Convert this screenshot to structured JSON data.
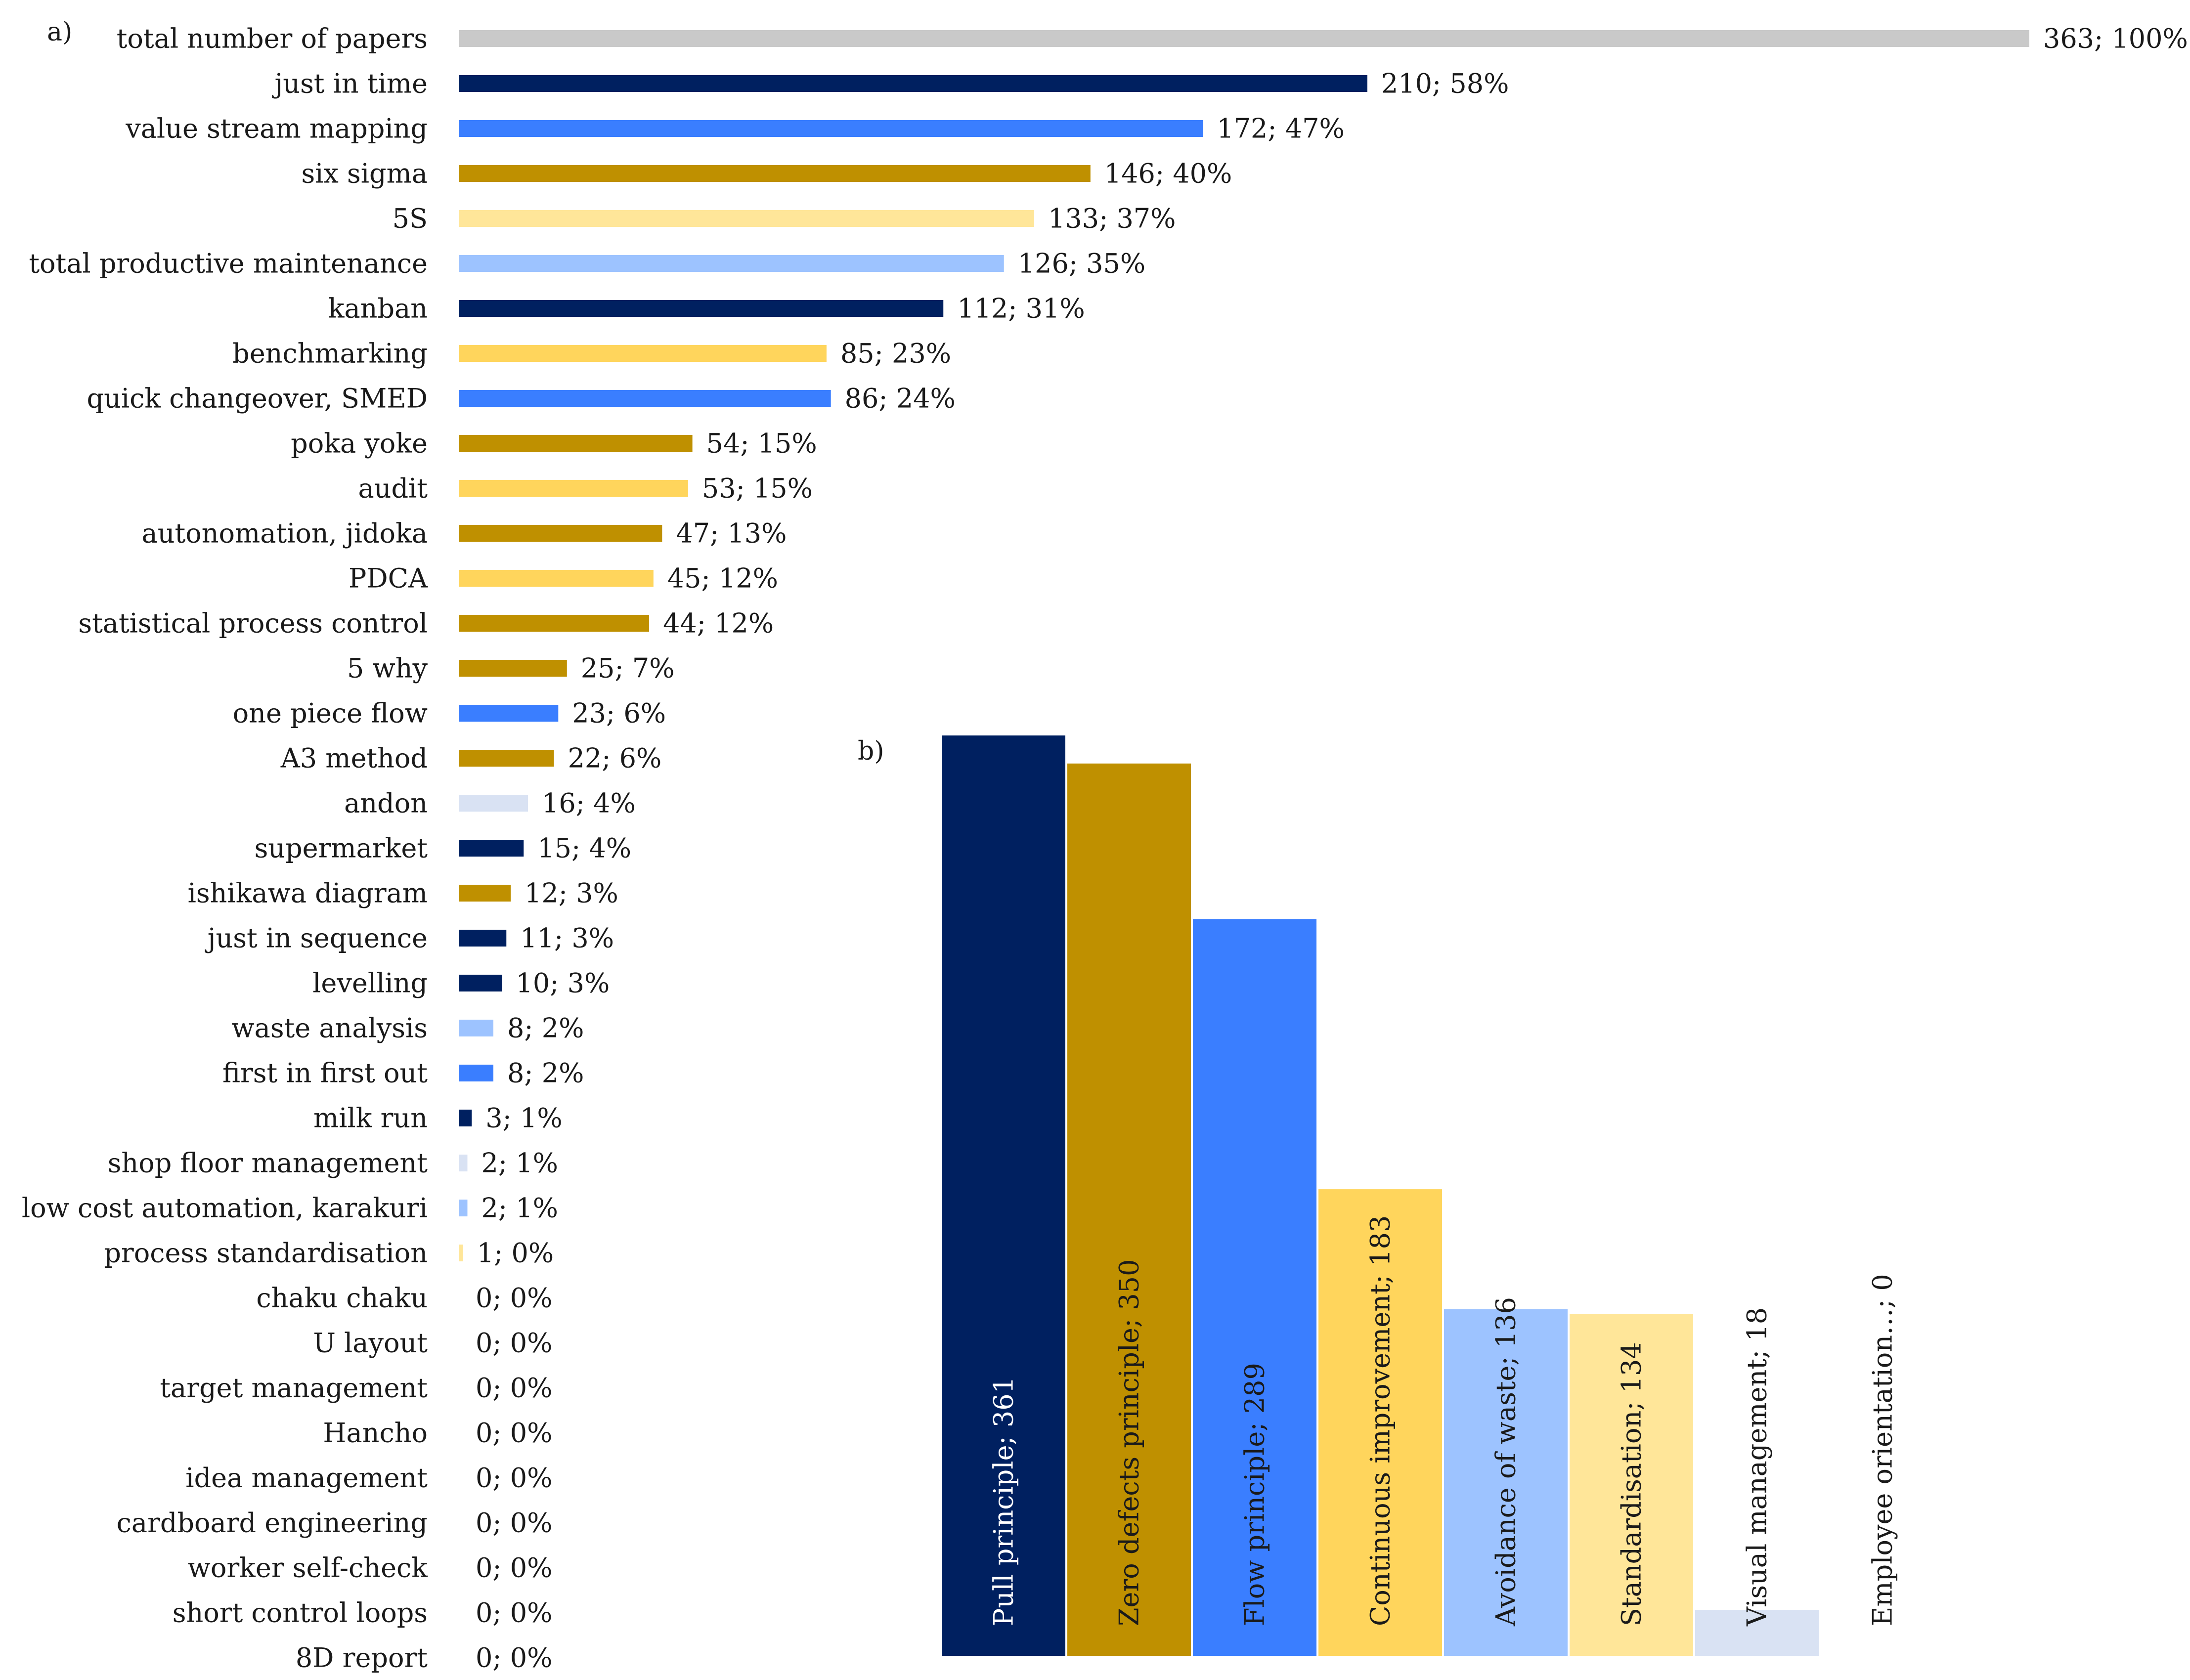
{
  "chart_data": [
    {
      "type": "bar",
      "orientation": "horizontal",
      "panel_label": "a)",
      "title": "",
      "xlabel": "",
      "ylabel": "",
      "xlim": [
        0,
        363
      ],
      "grid": false,
      "legend": "none",
      "categories": [
        "total number of papers",
        "just in time",
        "value stream mapping",
        "six sigma",
        "5S",
        "total productive maintenance",
        "kanban",
        "benchmarking",
        "quick changeover, SMED",
        "poka yoke",
        "audit",
        "autonomation, jidoka",
        "PDCA",
        "statistical process control",
        "5 why",
        "one piece flow",
        "A3 method",
        "andon",
        "supermarket",
        "ishikawa diagram",
        "just in sequence",
        "levelling",
        "waste analysis",
        "first in first out",
        "milk run",
        "shop floor management",
        "low cost automation, karakuri",
        "process standardisation",
        "chaku chaku",
        "U layout",
        "target management",
        "Hancho",
        "idea management",
        "cardboard engineering",
        "worker self-check",
        "short control loops",
        "8D report"
      ],
      "values": [
        363,
        210,
        172,
        146,
        133,
        126,
        112,
        85,
        86,
        54,
        53,
        47,
        45,
        44,
        25,
        23,
        22,
        16,
        15,
        12,
        11,
        10,
        8,
        8,
        3,
        2,
        2,
        1,
        0,
        0,
        0,
        0,
        0,
        0,
        0,
        0,
        0
      ],
      "labels": [
        "363; 100%",
        "210; 58%",
        "172; 47%",
        "146; 40%",
        "133; 37%",
        "126; 35%",
        "112; 31%",
        "85; 23%",
        "86; 24%",
        "54; 15%",
        "53; 15%",
        "47; 13%",
        "45; 12%",
        "44; 12%",
        "25; 7%",
        "23; 6%",
        "22; 6%",
        "16; 4%",
        "15; 4%",
        "12; 3%",
        "11; 3%",
        "10; 3%",
        "8; 2%",
        "8; 2%",
        "3; 1%",
        "2; 1%",
        "2; 1%",
        "1; 0%",
        "0; 0%",
        "0; 0%",
        "0; 0%",
        "0; 0%",
        "0; 0%",
        "0; 0%",
        "0; 0%",
        "0; 0%",
        "0; 0%"
      ],
      "colors": [
        "#C9C9C9",
        "#002060",
        "#3A7EFF",
        "#BF9000",
        "#FFE699",
        "#9DC3FF",
        "#002060",
        "#FFD55C",
        "#3A7EFF",
        "#BF9000",
        "#FFD55C",
        "#BF9000",
        "#FFD55C",
        "#BF9000",
        "#BF9000",
        "#3A7EFF",
        "#BF9000",
        "#D9E2F3",
        "#002060",
        "#BF9000",
        "#002060",
        "#002060",
        "#9DC3FF",
        "#3A7EFF",
        "#002060",
        "#D9E2F3",
        "#9DC3FF",
        "#FFE699",
        "#FFFFFF",
        "#FFFFFF",
        "#FFFFFF",
        "#FFFFFF",
        "#FFFFFF",
        "#FFFFFF",
        "#FFFFFF",
        "#FFFFFF",
        "#FFFFFF"
      ]
    },
    {
      "type": "bar",
      "orientation": "vertical",
      "panel_label": "b)",
      "title": "",
      "xlabel": "",
      "ylabel": "",
      "ylim": [
        0,
        361
      ],
      "grid": false,
      "legend": "none",
      "categories": [
        "Pull principle",
        "Zero defects principle",
        "Flow principle",
        "Continuous improvement",
        "Avoidance of waste",
        "Standardisation",
        "Visual management",
        "Employee orientation"
      ],
      "values": [
        361,
        350,
        289,
        183,
        136,
        134,
        18,
        0
      ],
      "labels": [
        "Pull principle; 361",
        "Zero defects principle; 350",
        "Flow principle; 289",
        "Continuous improvement; 183",
        "Avoidance of waste; 136",
        "Standardisation; 134",
        "Visual management; 18",
        "Employee orientation…; 0"
      ],
      "colors": [
        "#002060",
        "#BF9000",
        "#3A7EFF",
        "#FFD55C",
        "#9DC3FF",
        "#FFE699",
        "#D9E2F3",
        "#FFFFFF"
      ],
      "label_colors": [
        "#FFFFFF",
        "#1a1a1a",
        "#1a1a1a",
        "#1a1a1a",
        "#1a1a1a",
        "#1a1a1a",
        "#1a1a1a",
        "#1a1a1a"
      ]
    }
  ]
}
